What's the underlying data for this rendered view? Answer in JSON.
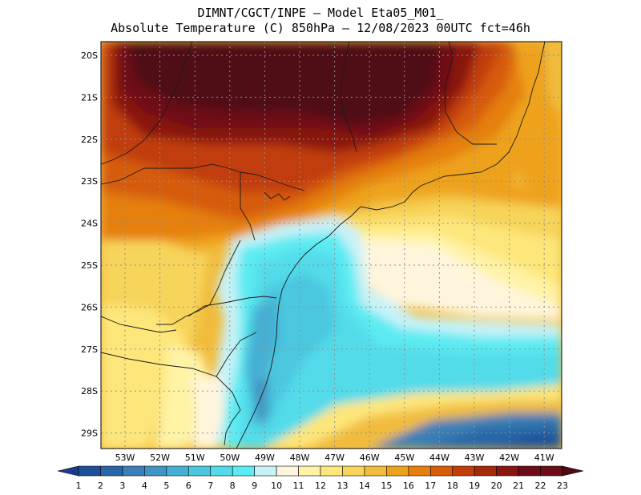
{
  "header": {
    "line1": "DIMNT/CGCT/INPE –  Model Eta05_M01_",
    "line2": "Absolute Temperature (C) 850hPa –  12/08/2023 00UTC fct=46h"
  },
  "map": {
    "lat_labels": [
      "20S",
      "21S",
      "22S",
      "23S",
      "24S",
      "25S",
      "26S",
      "27S",
      "28S",
      "29S"
    ],
    "lon_labels": [
      "53W",
      "52W",
      "51W",
      "50W",
      "49W",
      "48W",
      "47W",
      "46W",
      "45W",
      "44W",
      "43W",
      "42W",
      "41W"
    ]
  },
  "colorbar": {
    "labels": [
      "1",
      "2",
      "3",
      "4",
      "5",
      "6",
      "7",
      "8",
      "9",
      "10",
      "11",
      "12",
      "13",
      "14",
      "15",
      "16",
      "17",
      "18",
      "19",
      "20",
      "21",
      "22",
      "23"
    ],
    "colors": [
      "#1b3a8c",
      "#1f4f9a",
      "#2866a8",
      "#3a7fb6",
      "#3f96c2",
      "#44b0d4",
      "#4cc7e0",
      "#52dbea",
      "#5cebf2",
      "#c8f2f8",
      "#fff5dc",
      "#fff3a6",
      "#fde67a",
      "#f7d45a",
      "#f1bc3c",
      "#eea21c",
      "#e57f0e",
      "#d65c08",
      "#c13e08",
      "#a52a0a",
      "#891410",
      "#6e0c18",
      "#4f0a14"
    ]
  }
}
